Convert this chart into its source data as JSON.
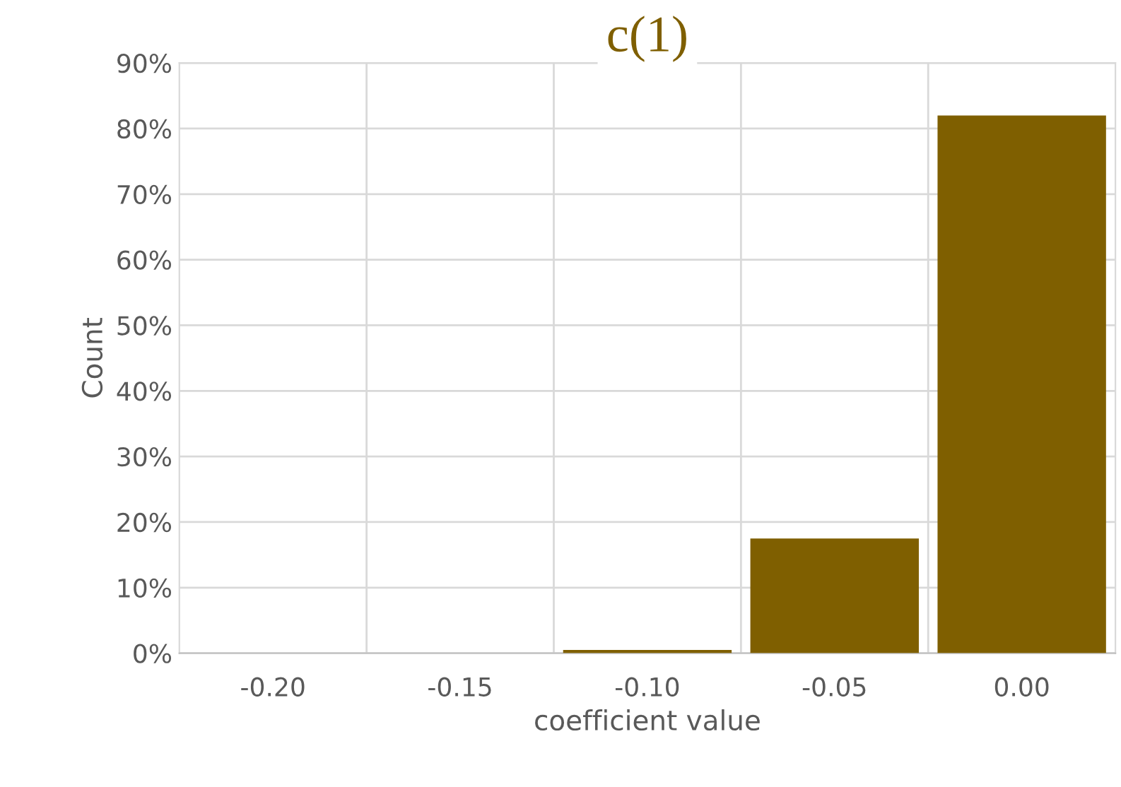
{
  "chart_data": {
    "type": "bar",
    "title": "c(1)",
    "xlabel": "coefficient value",
    "ylabel": "Count",
    "categories": [
      "-0.20",
      "-0.15",
      "-0.10",
      "-0.05",
      "0.00"
    ],
    "values": [
      0,
      0,
      0.5,
      17.5,
      82
    ],
    "color": "#7f5f00",
    "ylim": [
      0,
      90
    ],
    "yticks": [
      {
        "value": 0,
        "label": "0%"
      },
      {
        "value": 10,
        "label": "10%"
      },
      {
        "value": 20,
        "label": "20%"
      },
      {
        "value": 30,
        "label": "30%"
      },
      {
        "value": 40,
        "label": "40%"
      },
      {
        "value": 50,
        "label": "50%"
      },
      {
        "value": 60,
        "label": "60%"
      },
      {
        "value": 70,
        "label": "70%"
      },
      {
        "value": 80,
        "label": "80%"
      },
      {
        "value": 90,
        "label": "90%"
      }
    ],
    "grid": true
  }
}
